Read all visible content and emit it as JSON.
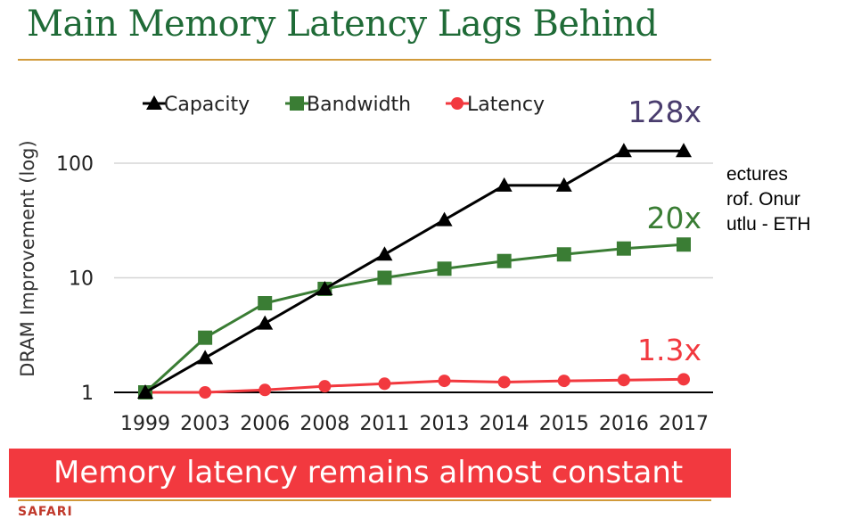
{
  "slide": {
    "title": "Main Memory Latency Lags Behind",
    "side_note": "ectures\nrof. Onur\nutlu - ETH",
    "banner": "Memory latency remains almost constant",
    "footer_logo": "SAFARI"
  },
  "colors": {
    "title": "#1f6b37",
    "rule": "#d19a3a",
    "banner": "#f2393f",
    "capacity": "#000000",
    "bandwidth": "#3a7d34",
    "latency": "#f2393f",
    "annotation_capacity": "#4a3d6e"
  },
  "chart_data": {
    "type": "line",
    "title": "",
    "xlabel": "",
    "ylabel": "DRAM Improvement (log)",
    "yscale": "log",
    "ylim": [
      1,
      200
    ],
    "yticks": [
      1,
      10,
      100
    ],
    "ytick_labels": [
      "1",
      "10",
      "100"
    ],
    "grid": "horizontal",
    "legend_position": "top",
    "categories": [
      "1999",
      "2003",
      "2006",
      "2008",
      "2011",
      "2013",
      "2014",
      "2015",
      "2016",
      "2017"
    ],
    "series": [
      {
        "name": "Capacity",
        "marker": "triangle",
        "color": "#000000",
        "values": [
          1,
          2,
          4,
          8,
          16,
          32,
          64,
          64,
          128,
          128
        ]
      },
      {
        "name": "Bandwidth",
        "marker": "square",
        "color": "#3a7d34",
        "values": [
          1,
          3,
          6,
          8,
          10,
          12,
          14,
          16,
          18,
          19.5
        ]
      },
      {
        "name": "Latency",
        "marker": "circle",
        "color": "#f2393f",
        "values": [
          1,
          1,
          1.05,
          1.13,
          1.19,
          1.26,
          1.23,
          1.26,
          1.28,
          1.3
        ]
      }
    ],
    "annotations": [
      {
        "text": "128x",
        "series": "Capacity"
      },
      {
        "text": "20x",
        "series": "Bandwidth"
      },
      {
        "text": "1.3x",
        "series": "Latency"
      }
    ]
  }
}
